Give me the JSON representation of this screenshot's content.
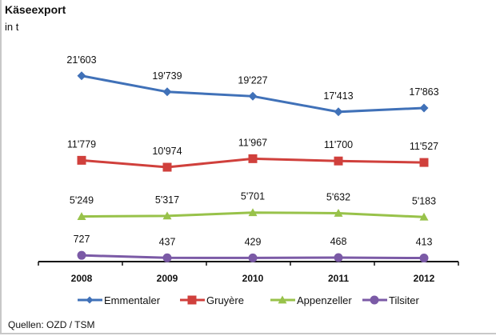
{
  "chart_data": {
    "type": "line",
    "title": "Käseexport",
    "subtitle": "in t",
    "xlabel": "",
    "ylabel": "",
    "x": [
      "2008",
      "2009",
      "2010",
      "2011",
      "2012"
    ],
    "ylim": [
      0,
      24000
    ],
    "grid": false,
    "legend_position": "bottom",
    "series": [
      {
        "name": "Emmentaler",
        "values": [
          21603,
          19739,
          19227,
          17413,
          17863
        ],
        "labels": [
          "21'603",
          "19'739",
          "19'227",
          "17'413",
          "17'863"
        ],
        "color": "#4071b8",
        "marker": "diamond"
      },
      {
        "name": "Gruyère",
        "values": [
          11779,
          10974,
          11967,
          11700,
          11527
        ],
        "labels": [
          "11'779",
          "10'974",
          "11'967",
          "11'700",
          "11'527"
        ],
        "color": "#d0403c",
        "marker": "square"
      },
      {
        "name": "Appenzeller",
        "values": [
          5249,
          5317,
          5701,
          5632,
          5183
        ],
        "labels": [
          "5'249",
          "5'317",
          "5'701",
          "5'632",
          "5'183"
        ],
        "color": "#98c24a",
        "marker": "triangle"
      },
      {
        "name": "Tilsiter",
        "values": [
          727,
          437,
          429,
          468,
          413
        ],
        "labels": [
          "727",
          "437",
          "429",
          "468",
          "413"
        ],
        "color": "#7b5aa6",
        "marker": "circle"
      }
    ],
    "source": "Quellen:  OZD / TSM"
  }
}
